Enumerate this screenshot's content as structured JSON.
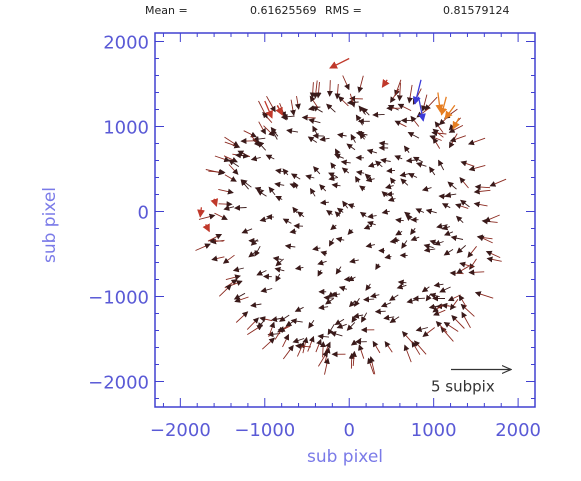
{
  "header": {
    "mean_label": "Mean =",
    "mean_value": "0.61625569",
    "rms_label": "RMS =",
    "rms_value": "0.81579124"
  },
  "chart_data": {
    "type": "vector-field",
    "xlabel": "sub pixel",
    "ylabel": "sub pixel",
    "xlim": [
      -2300,
      2200
    ],
    "ylim": [
      -2300,
      2100
    ],
    "xticks": [
      -2000,
      -1000,
      0,
      1000,
      2000
    ],
    "yticks": [
      -2000,
      -1000,
      0,
      1000,
      2000
    ],
    "reference_vector": {
      "label": "5 subpix",
      "length": 5,
      "x": 1300,
      "y": -1800
    },
    "field_extent": {
      "center": [
        50,
        -150
      ],
      "radius": 1900
    },
    "colors": {
      "frame": "#4040d0",
      "small_arrows": "#3a1a1a",
      "medium_arrows": "#c0392b",
      "large_arrows_orange": "#e67e22",
      "large_arrows_blue": "#3b3bd9",
      "reference_arrow": "#333333"
    },
    "highlight_vectors": [
      {
        "x": 0,
        "y": 1800,
        "dx": -1.6,
        "dy": 0.8,
        "color": "#c0392b"
      },
      {
        "x": 450,
        "y": 1550,
        "dx": -0.4,
        "dy": 0.6,
        "color": "#c0392b"
      },
      {
        "x": 850,
        "y": 1550,
        "dx": -0.5,
        "dy": 2.0,
        "color": "#3b3bd9"
      },
      {
        "x": 820,
        "y": 1350,
        "dx": 0.4,
        "dy": 2.0,
        "color": "#3b3bd9"
      },
      {
        "x": 1050,
        "y": 1400,
        "dx": 0.2,
        "dy": 1.6,
        "color": "#e67e22"
      },
      {
        "x": 1150,
        "y": 1350,
        "dx": -0.4,
        "dy": 1.5,
        "color": "#e67e22"
      },
      {
        "x": 1250,
        "y": 1250,
        "dx": -0.8,
        "dy": 1.1,
        "color": "#e67e22"
      },
      {
        "x": 1300,
        "y": 1100,
        "dx": -0.5,
        "dy": 0.9,
        "color": "#e67e22"
      },
      {
        "x": -1000,
        "y": 1300,
        "dx": 0.6,
        "dy": 1.4,
        "color": "#c0392b"
      },
      {
        "x": -850,
        "y": 1250,
        "dx": 0.4,
        "dy": 0.8,
        "color": "#c0392b"
      },
      {
        "x": -1750,
        "y": 50,
        "dx": -0.1,
        "dy": 0.8,
        "color": "#c0392b"
      },
      {
        "x": -1700,
        "y": -150,
        "dx": 0.3,
        "dy": 0.6,
        "color": "#c0392b"
      },
      {
        "x": -1600,
        "y": 150,
        "dx": 0.2,
        "dy": 0.6,
        "color": "#c0392b"
      }
    ],
    "field_vectors": {
      "count": 360,
      "seed": 20240611,
      "base_magnitude": 0.45,
      "edge_magnitude": 1.3,
      "direction_note": "mostly pointing left/inward, longer near the edge"
    }
  }
}
